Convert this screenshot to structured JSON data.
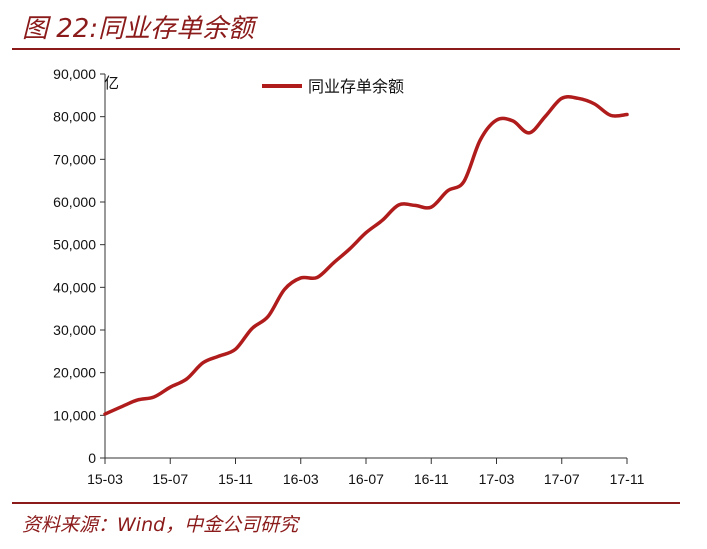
{
  "header": {
    "title": "图 22:同业存单余额"
  },
  "footer": {
    "source": "资料来源：Wind，中金公司研究"
  },
  "colors": {
    "accent": "#8b1a1a",
    "series": "#b01c1c",
    "axis": "#333333"
  },
  "chart_data": {
    "type": "line",
    "title": "",
    "ylabel": "亿",
    "xlabel": "",
    "ylim": [
      0,
      90000
    ],
    "yticks": [
      0,
      10000,
      20000,
      30000,
      40000,
      50000,
      60000,
      70000,
      80000,
      90000
    ],
    "ytick_labels": [
      "0",
      "10,000",
      "20,000",
      "30,000",
      "40,000",
      "50,000",
      "60,000",
      "70,000",
      "80,000",
      "90,000"
    ],
    "xtick_labels": [
      "15-03",
      "15-07",
      "15-11",
      "16-03",
      "16-07",
      "16-11",
      "17-03",
      "17-07",
      "17-11"
    ],
    "grid": false,
    "legend_position": "top",
    "x": [
      "15-03",
      "15-04",
      "15-05",
      "15-06",
      "15-07",
      "15-08",
      "15-09",
      "15-10",
      "15-11",
      "15-12",
      "16-01",
      "16-02",
      "16-03",
      "16-04",
      "16-05",
      "16-06",
      "16-07",
      "16-08",
      "16-09",
      "16-10",
      "16-11",
      "16-12",
      "17-01",
      "17-02",
      "17-03",
      "17-04",
      "17-05",
      "17-06",
      "17-07",
      "17-08",
      "17-09",
      "17-10",
      "17-11"
    ],
    "series": [
      {
        "name": "同业存单余额",
        "values": [
          10300,
          12000,
          13600,
          14300,
          16600,
          18500,
          22300,
          23900,
          25500,
          30300,
          33200,
          39500,
          42200,
          42300,
          45700,
          49000,
          52800,
          55700,
          59300,
          59200,
          58800,
          62600,
          64800,
          74500,
          79200,
          79000,
          76200,
          80100,
          84300,
          84300,
          83000,
          80300,
          80500
        ]
      }
    ]
  }
}
